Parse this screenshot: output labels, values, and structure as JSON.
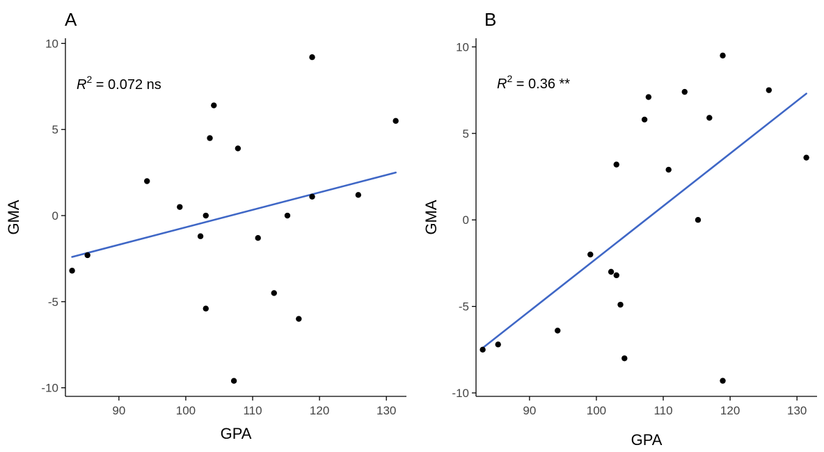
{
  "chart_data": [
    {
      "type": "scatter",
      "panel_label": "A",
      "xlabel": "GPA",
      "ylabel": "GMA",
      "x_ticks": [
        90,
        100,
        110,
        120,
        130
      ],
      "y_ticks": [
        -10,
        -5,
        0,
        5,
        10
      ],
      "xlim": [
        82,
        133
      ],
      "ylim": [
        -10.5,
        10.3
      ],
      "annotation": {
        "r_symbol": "R",
        "superscript": "2",
        "text": " = 0.072 ns"
      },
      "points": [
        {
          "x": 83,
          "y": -3.2
        },
        {
          "x": 85.3,
          "y": -2.3
        },
        {
          "x": 94.2,
          "y": 2.0
        },
        {
          "x": 99.1,
          "y": 0.5
        },
        {
          "x": 102.2,
          "y": -1.2
        },
        {
          "x": 103,
          "y": 0.0
        },
        {
          "x": 103,
          "y": -5.4
        },
        {
          "x": 103.6,
          "y": 4.5
        },
        {
          "x": 104.2,
          "y": 6.4
        },
        {
          "x": 107.2,
          "y": -9.6
        },
        {
          "x": 107.8,
          "y": 3.9
        },
        {
          "x": 110.8,
          "y": -1.3
        },
        {
          "x": 113.2,
          "y": -4.5
        },
        {
          "x": 115.2,
          "y": 0.0
        },
        {
          "x": 116.9,
          "y": -6.0
        },
        {
          "x": 118.9,
          "y": 1.1
        },
        {
          "x": 118.9,
          "y": 9.2
        },
        {
          "x": 125.8,
          "y": 1.2
        },
        {
          "x": 131.4,
          "y": 5.5
        }
      ],
      "fit_line": {
        "x": [
          83,
          131.4
        ],
        "y": [
          -2.4,
          2.5
        ],
        "color": "#3f67c6"
      },
      "point_color": "#000000",
      "grid": false
    },
    {
      "type": "scatter",
      "panel_label": "B",
      "xlabel": "GPA",
      "ylabel": "GMA",
      "x_ticks": [
        90,
        100,
        110,
        120,
        130
      ],
      "y_ticks": [
        -10,
        -5,
        0,
        5,
        10
      ],
      "xlim": [
        82,
        133
      ],
      "ylim": [
        -10.2,
        10.5
      ],
      "annotation": {
        "r_symbol": "R",
        "superscript": "2",
        "text": " = 0.36 **"
      },
      "points": [
        {
          "x": 83,
          "y": -7.5
        },
        {
          "x": 85.3,
          "y": -7.2
        },
        {
          "x": 94.2,
          "y": -6.4
        },
        {
          "x": 99.1,
          "y": -2.0
        },
        {
          "x": 102.2,
          "y": -3.0
        },
        {
          "x": 103,
          "y": -3.2
        },
        {
          "x": 103,
          "y": 3.2
        },
        {
          "x": 103.6,
          "y": -4.9
        },
        {
          "x": 104.2,
          "y": -8.0
        },
        {
          "x": 107.2,
          "y": 5.8
        },
        {
          "x": 107.8,
          "y": 7.1
        },
        {
          "x": 110.8,
          "y": 2.9
        },
        {
          "x": 113.2,
          "y": 7.4
        },
        {
          "x": 115.2,
          "y": 0.0
        },
        {
          "x": 116.9,
          "y": 5.9
        },
        {
          "x": 118.9,
          "y": 9.5
        },
        {
          "x": 118.9,
          "y": -9.3
        },
        {
          "x": 125.8,
          "y": 7.5
        },
        {
          "x": 131.4,
          "y": 3.6
        }
      ],
      "fit_line": {
        "x": [
          83,
          131.4
        ],
        "y": [
          -7.4,
          7.3
        ],
        "color": "#3f67c6"
      },
      "point_color": "#000000",
      "grid": false
    }
  ]
}
